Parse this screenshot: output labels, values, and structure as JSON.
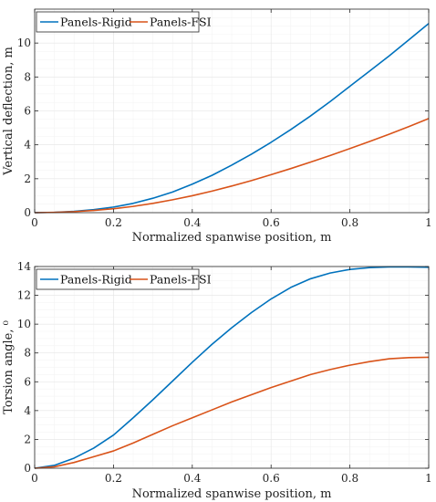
{
  "chart_data": [
    {
      "type": "line",
      "xlabel": "Normalized spanwise position, m",
      "ylabel": "Vertical deflection, m",
      "xlim": [
        0,
        1
      ],
      "ylim": [
        0,
        12
      ],
      "xticks": [
        0,
        0.2,
        0.4,
        0.6,
        0.8,
        1
      ],
      "xtick_labels": [
        "0",
        "0.2",
        "0.4",
        "0.6",
        "0.8",
        "1"
      ],
      "yticks": [
        0,
        2,
        4,
        6,
        8,
        10
      ],
      "ytick_labels": [
        "0",
        "2",
        "4",
        "6",
        "8",
        "10"
      ],
      "grid": true,
      "legend_position": "top-left",
      "series": [
        {
          "name": "Panels-Rigid",
          "color": "#0072BD",
          "x": [
            0,
            0.05,
            0.1,
            0.15,
            0.2,
            0.25,
            0.3,
            0.35,
            0.4,
            0.45,
            0.5,
            0.55,
            0.6,
            0.65,
            0.7,
            0.75,
            0.8,
            0.85,
            0.9,
            0.95,
            1
          ],
          "y": [
            0,
            0.02,
            0.08,
            0.18,
            0.33,
            0.55,
            0.85,
            1.22,
            1.68,
            2.2,
            2.8,
            3.45,
            4.15,
            4.9,
            5.7,
            6.55,
            7.45,
            8.35,
            9.25,
            10.2,
            11.15
          ]
        },
        {
          "name": "Panels-FSI",
          "color": "#D95319",
          "x": [
            0,
            0.05,
            0.1,
            0.15,
            0.2,
            0.25,
            0.3,
            0.35,
            0.4,
            0.45,
            0.5,
            0.55,
            0.6,
            0.65,
            0.7,
            0.75,
            0.8,
            0.85,
            0.9,
            0.95,
            1
          ],
          "y": [
            0,
            0.02,
            0.06,
            0.13,
            0.23,
            0.37,
            0.55,
            0.76,
            1.0,
            1.27,
            1.57,
            1.89,
            2.24,
            2.6,
            2.98,
            3.37,
            3.78,
            4.2,
            4.63,
            5.08,
            5.55
          ]
        }
      ]
    },
    {
      "type": "line",
      "xlabel": "Normalized spanwise position, m",
      "ylabel": "Torsion angle, ⁰",
      "xlim": [
        0,
        1
      ],
      "ylim": [
        0,
        14
      ],
      "xticks": [
        0,
        0.2,
        0.4,
        0.6,
        0.8,
        1
      ],
      "xtick_labels": [
        "0",
        "0.2",
        "0.4",
        "0.6",
        "0.8",
        "1"
      ],
      "yticks": [
        0,
        2,
        4,
        6,
        8,
        10,
        12,
        14
      ],
      "ytick_labels": [
        "0",
        "2",
        "4",
        "6",
        "8",
        "10",
        "12",
        "14"
      ],
      "grid": true,
      "legend_position": "top-left",
      "series": [
        {
          "name": "Panels-Rigid",
          "color": "#0072BD",
          "x": [
            0,
            0.05,
            0.1,
            0.15,
            0.2,
            0.25,
            0.3,
            0.35,
            0.4,
            0.45,
            0.5,
            0.55,
            0.6,
            0.65,
            0.7,
            0.75,
            0.8,
            0.85,
            0.9,
            0.95,
            1
          ],
          "y": [
            0,
            0.2,
            0.7,
            1.4,
            2.3,
            3.5,
            4.75,
            6.05,
            7.35,
            8.6,
            9.75,
            10.8,
            11.75,
            12.55,
            13.15,
            13.55,
            13.8,
            13.92,
            13.97,
            13.97,
            13.95
          ]
        },
        {
          "name": "Panels-FSI",
          "color": "#D95319",
          "x": [
            0,
            0.05,
            0.1,
            0.15,
            0.2,
            0.25,
            0.3,
            0.35,
            0.4,
            0.45,
            0.5,
            0.55,
            0.6,
            0.65,
            0.7,
            0.75,
            0.8,
            0.85,
            0.9,
            0.95,
            1
          ],
          "y": [
            0,
            0.1,
            0.4,
            0.8,
            1.2,
            1.75,
            2.35,
            2.95,
            3.5,
            4.05,
            4.6,
            5.1,
            5.6,
            6.05,
            6.5,
            6.85,
            7.15,
            7.4,
            7.6,
            7.68,
            7.7
          ]
        }
      ]
    }
  ]
}
